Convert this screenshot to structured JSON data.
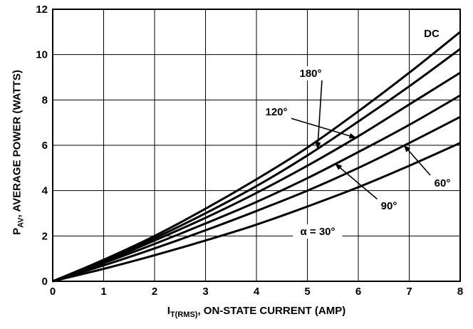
{
  "chart_data": {
    "type": "line",
    "xlabel": {
      "main": "I",
      "subscript": "T(RMS)",
      "rest": ", ON-STATE CURRENT (AMP)"
    },
    "ylabel": {
      "main": "P",
      "subscript": "AV",
      "rest": ", AVERAGE POWER (WATTS)"
    },
    "xlim": [
      0,
      8
    ],
    "ylim": [
      0,
      12
    ],
    "xticks": [
      0,
      1,
      2,
      3,
      4,
      5,
      6,
      7,
      8
    ],
    "yticks": [
      0,
      2,
      4,
      6,
      8,
      10,
      12
    ],
    "grid": true,
    "series": [
      {
        "name": "DC",
        "x": [
          0,
          1,
          2,
          3,
          4,
          5,
          6,
          7,
          8
        ],
        "y": [
          0,
          0.95,
          2.0,
          3.2,
          4.5,
          5.9,
          7.5,
          9.2,
          11.0
        ]
      },
      {
        "name": "180°",
        "x": [
          0,
          1,
          2,
          3,
          4,
          5,
          6,
          7,
          8
        ],
        "y": [
          0,
          0.9,
          1.9,
          3.0,
          4.2,
          5.55,
          7.05,
          8.6,
          10.25
        ]
      },
      {
        "name": "120°",
        "x": [
          0,
          1,
          2,
          3,
          4,
          5,
          6,
          7,
          8
        ],
        "y": [
          0,
          0.85,
          1.8,
          2.8,
          3.9,
          5.1,
          6.4,
          7.8,
          9.2
        ]
      },
      {
        "name": "90°",
        "x": [
          0,
          1,
          2,
          3,
          4,
          5,
          6,
          7,
          8
        ],
        "y": [
          0,
          0.8,
          1.65,
          2.55,
          3.5,
          4.55,
          5.7,
          6.9,
          8.2
        ]
      },
      {
        "name": "60°",
        "x": [
          0,
          1,
          2,
          3,
          4,
          5,
          6,
          7,
          8
        ],
        "y": [
          0,
          0.7,
          1.45,
          2.25,
          3.1,
          4.0,
          5.0,
          6.1,
          7.25
        ]
      },
      {
        "name": "α = 30°",
        "x": [
          0,
          1,
          2,
          3,
          4,
          5,
          6,
          7,
          8
        ],
        "y": [
          0,
          0.55,
          1.15,
          1.8,
          2.5,
          3.3,
          4.15,
          5.1,
          6.1
        ]
      }
    ],
    "annotations": [
      {
        "text": "DC",
        "series": "DC",
        "arrow": false
      },
      {
        "text": "180°",
        "series": "180°",
        "arrow": true
      },
      {
        "text": "120°",
        "series": "120°",
        "arrow": true
      },
      {
        "text": "90°",
        "series": "90°",
        "arrow": true
      },
      {
        "text": "60°",
        "series": "60°",
        "arrow": true
      },
      {
        "text": "α = 30°",
        "series": "α = 30°",
        "arrow": false
      }
    ]
  }
}
